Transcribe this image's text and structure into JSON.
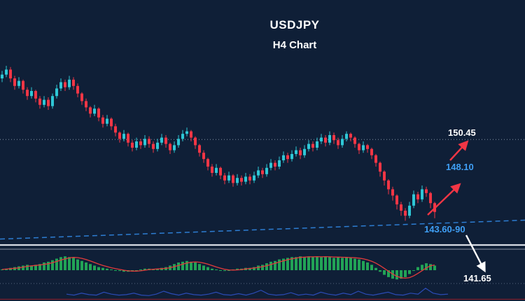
{
  "page": {
    "background": "#0f1f37",
    "title_line1": "USDJPY",
    "title_line2": "H4 Chart"
  },
  "annotations": {
    "resistance_upper": {
      "text": "150.45",
      "color": "#ffffff"
    },
    "resistance_lower": {
      "text": "148.10",
      "color": "#3f9ff5"
    },
    "support_zone": {
      "text": "143.60-90",
      "color": "#3f9ff5"
    },
    "downside_target": {
      "text": "141.65",
      "color": "#ffffff"
    }
  },
  "chart_data": {
    "type": "candlestick",
    "symbol": "USDJPY",
    "timeframe": "H4",
    "visible_price_range": [
      143.5,
      156.8
    ],
    "colors": {
      "up": "#2ec7d6",
      "down": "#f23645",
      "level_line": "#8492a6",
      "trendline": "#2d7dd2",
      "label_blue": "#3f9ff5",
      "label_white": "#ffffff",
      "background": "#0f1f37"
    },
    "levels": [
      {
        "price": 150.45,
        "label": "150.45",
        "line": true
      },
      {
        "price": 148.1,
        "label": "148.10",
        "line": false
      }
    ],
    "support_zone_label": "143.60-90",
    "downside_target_label": "141.65",
    "trendline": {
      "style": "dashed",
      "start_price": 142.55,
      "end_price": 144.05,
      "label": "143.60-90"
    },
    "candles": [
      [
        155.3,
        155.9,
        155.0,
        155.6
      ],
      [
        155.6,
        156.3,
        155.4,
        156.0
      ],
      [
        156.0,
        156.2,
        155.0,
        155.3
      ],
      [
        155.3,
        155.5,
        154.4,
        154.7
      ],
      [
        154.7,
        155.4,
        154.5,
        155.1
      ],
      [
        155.1,
        155.2,
        154.1,
        154.4
      ],
      [
        154.4,
        154.6,
        153.6,
        153.9
      ],
      [
        153.9,
        154.6,
        153.7,
        154.3
      ],
      [
        154.3,
        154.4,
        153.4,
        153.7
      ],
      [
        153.7,
        153.9,
        152.9,
        153.2
      ],
      [
        153.2,
        153.9,
        153.0,
        153.6
      ],
      [
        153.6,
        153.8,
        152.8,
        153.1
      ],
      [
        153.1,
        154.1,
        152.9,
        153.9
      ],
      [
        153.9,
        154.8,
        153.7,
        154.5
      ],
      [
        154.5,
        155.3,
        154.3,
        155.0
      ],
      [
        155.0,
        155.2,
        154.3,
        154.6
      ],
      [
        154.6,
        155.5,
        154.4,
        155.2
      ],
      [
        155.2,
        155.4,
        154.4,
        154.7
      ],
      [
        154.7,
        154.9,
        153.8,
        154.1
      ],
      [
        154.1,
        154.2,
        153.2,
        153.5
      ],
      [
        153.5,
        153.7,
        152.7,
        153.0
      ],
      [
        153.0,
        153.1,
        152.2,
        152.5
      ],
      [
        152.5,
        153.2,
        152.3,
        152.9
      ],
      [
        152.9,
        153.0,
        151.9,
        152.2
      ],
      [
        152.2,
        152.4,
        151.4,
        151.7
      ],
      [
        151.7,
        152.4,
        151.5,
        152.1
      ],
      [
        152.1,
        152.2,
        151.2,
        151.5
      ],
      [
        151.5,
        151.7,
        150.7,
        151.0
      ],
      [
        151.0,
        151.1,
        150.2,
        150.5
      ],
      [
        150.5,
        151.2,
        150.3,
        150.9
      ],
      [
        150.9,
        151.0,
        149.9,
        150.2
      ],
      [
        150.2,
        150.4,
        149.5,
        149.8
      ],
      [
        149.8,
        150.6,
        149.6,
        150.3
      ],
      [
        150.3,
        150.5,
        149.7,
        150.0
      ],
      [
        150.0,
        150.8,
        149.8,
        150.5
      ],
      [
        150.5,
        150.7,
        149.8,
        150.1
      ],
      [
        150.1,
        150.3,
        149.4,
        149.7
      ],
      [
        149.7,
        150.5,
        149.5,
        150.2
      ],
      [
        150.2,
        150.9,
        150.0,
        150.6
      ],
      [
        150.6,
        150.8,
        149.8,
        150.1
      ],
      [
        150.1,
        150.2,
        149.3,
        149.6
      ],
      [
        149.6,
        150.3,
        149.4,
        150.0
      ],
      [
        150.0,
        150.8,
        149.8,
        150.5
      ],
      [
        150.5,
        151.2,
        150.3,
        150.9
      ],
      [
        150.9,
        151.4,
        150.7,
        151.1
      ],
      [
        151.1,
        151.2,
        150.3,
        150.6
      ],
      [
        150.6,
        150.7,
        149.7,
        150.0
      ],
      [
        150.0,
        150.1,
        149.1,
        149.4
      ],
      [
        149.4,
        149.6,
        148.6,
        148.9
      ],
      [
        148.9,
        149.0,
        148.0,
        148.3
      ],
      [
        148.3,
        148.5,
        147.5,
        147.8
      ],
      [
        147.8,
        148.5,
        147.6,
        148.2
      ],
      [
        148.2,
        148.3,
        147.3,
        147.6
      ],
      [
        147.6,
        147.8,
        146.9,
        147.2
      ],
      [
        147.2,
        147.9,
        147.0,
        147.6
      ],
      [
        147.6,
        147.7,
        146.7,
        147.0
      ],
      [
        147.0,
        147.7,
        146.8,
        147.4
      ],
      [
        147.4,
        147.6,
        146.8,
        147.1
      ],
      [
        147.1,
        147.8,
        146.9,
        147.5
      ],
      [
        147.5,
        147.7,
        146.9,
        147.2
      ],
      [
        147.2,
        147.9,
        147.0,
        147.6
      ],
      [
        147.6,
        148.3,
        147.4,
        148.0
      ],
      [
        148.0,
        148.2,
        147.4,
        147.7
      ],
      [
        147.7,
        148.5,
        147.5,
        148.2
      ],
      [
        148.2,
        148.9,
        148.0,
        148.6
      ],
      [
        148.6,
        148.8,
        148.0,
        148.3
      ],
      [
        148.3,
        149.1,
        148.1,
        148.8
      ],
      [
        148.8,
        149.5,
        148.6,
        149.2
      ],
      [
        149.2,
        149.4,
        148.6,
        148.9
      ],
      [
        148.9,
        149.6,
        148.7,
        149.3
      ],
      [
        149.3,
        149.9,
        149.1,
        149.6
      ],
      [
        149.6,
        149.8,
        148.9,
        149.2
      ],
      [
        149.2,
        150.0,
        149.0,
        149.7
      ],
      [
        149.7,
        150.4,
        149.5,
        150.1
      ],
      [
        150.1,
        150.3,
        149.5,
        149.8
      ],
      [
        149.8,
        150.6,
        149.6,
        150.3
      ],
      [
        150.3,
        150.9,
        150.1,
        150.6
      ],
      [
        150.6,
        150.8,
        149.9,
        150.2
      ],
      [
        150.2,
        151.1,
        150.0,
        150.8
      ],
      [
        150.8,
        151.0,
        150.1,
        150.4
      ],
      [
        150.4,
        150.6,
        149.7,
        150.0
      ],
      [
        150.0,
        150.8,
        149.8,
        150.5
      ],
      [
        150.5,
        151.1,
        150.3,
        150.9
      ],
      [
        150.9,
        151.0,
        150.3,
        150.6
      ],
      [
        150.6,
        150.7,
        149.8,
        150.1
      ],
      [
        150.1,
        150.2,
        149.3,
        149.6
      ],
      [
        149.6,
        150.3,
        149.4,
        150.0
      ],
      [
        150.0,
        150.1,
        149.4,
        149.7
      ],
      [
        149.7,
        149.8,
        148.9,
        149.2
      ],
      [
        149.2,
        149.3,
        148.3,
        148.6
      ],
      [
        148.6,
        148.7,
        147.5,
        147.9
      ],
      [
        147.9,
        148.0,
        146.8,
        147.2
      ],
      [
        147.2,
        147.3,
        146.1,
        146.5
      ],
      [
        146.5,
        146.7,
        145.6,
        146.0
      ],
      [
        146.0,
        146.1,
        144.9,
        145.3
      ],
      [
        145.3,
        145.5,
        144.4,
        144.8
      ],
      [
        144.8,
        145.0,
        144.0,
        144.4
      ],
      [
        144.4,
        145.5,
        144.2,
        145.2
      ],
      [
        145.2,
        146.4,
        145.0,
        146.1
      ],
      [
        146.1,
        146.3,
        145.4,
        145.7
      ],
      [
        145.7,
        146.8,
        145.5,
        146.5
      ],
      [
        146.5,
        146.7,
        145.9,
        146.2
      ],
      [
        146.2,
        146.3,
        145.0,
        145.4
      ],
      [
        145.4,
        145.5,
        144.2,
        144.7
      ]
    ],
    "indicator": {
      "name": "momentum-histogram",
      "bar_color": "#22a356",
      "signal_color": "#e23b3b",
      "values": [
        0.05,
        0.1,
        0.15,
        0.2,
        0.25,
        0.3,
        0.35,
        0.3,
        0.35,
        0.4,
        0.5,
        0.55,
        0.65,
        0.75,
        0.85,
        0.9,
        0.85,
        0.8,
        0.7,
        0.6,
        0.5,
        0.4,
        0.3,
        0.2,
        0.15,
        0.1,
        0.05,
        0,
        -0.05,
        -0.1,
        -0.1,
        -0.05,
        0,
        0.05,
        0.1,
        0.1,
        0.05,
        0.1,
        0.15,
        0.2,
        0.3,
        0.4,
        0.5,
        0.55,
        0.6,
        0.55,
        0.5,
        0.4,
        0.3,
        0.2,
        0.1,
        0.05,
        0,
        -0.05,
        0,
        0.05,
        0.1,
        0.1,
        0.15,
        0.15,
        0.2,
        0.3,
        0.35,
        0.45,
        0.55,
        0.6,
        0.7,
        0.75,
        0.8,
        0.85,
        0.85,
        0.9,
        0.85,
        0.9,
        0.85,
        0.9,
        0.85,
        0.9,
        0.85,
        0.8,
        0.85,
        0.8,
        0.85,
        0.8,
        0.75,
        0.7,
        0.6,
        0.5,
        0.35,
        0.15,
        -0.1,
        -0.3,
        -0.45,
        -0.55,
        -0.6,
        -0.55,
        -0.45,
        -0.25,
        0,
        0.2,
        0.35,
        0.45,
        0.4,
        0.3
      ]
    },
    "sub_indicator": {
      "name": "bottom-line-indicator",
      "color": "#2b4bb5",
      "values": [
        0.2,
        0.1,
        0.3,
        0.15,
        0.1,
        0.4,
        0.2,
        0.1,
        0.15,
        0.3,
        0.1,
        0.05,
        0.2,
        0.5,
        0.25,
        0.1,
        0.3,
        0.15,
        0.1,
        0.2,
        0.4,
        0.15,
        0.1,
        0.25,
        0.1,
        0.3,
        0.6,
        0.2,
        0.1,
        0.15,
        0.35,
        0.1,
        0.2,
        0.1,
        0.4,
        0.2,
        0.1,
        0.3,
        0.15,
        0.5,
        0.2,
        0.1,
        0.25,
        0.4,
        0.15,
        0.1,
        0.3,
        0.2,
        0.8,
        0.3,
        0.15,
        0.2
      ]
    }
  }
}
